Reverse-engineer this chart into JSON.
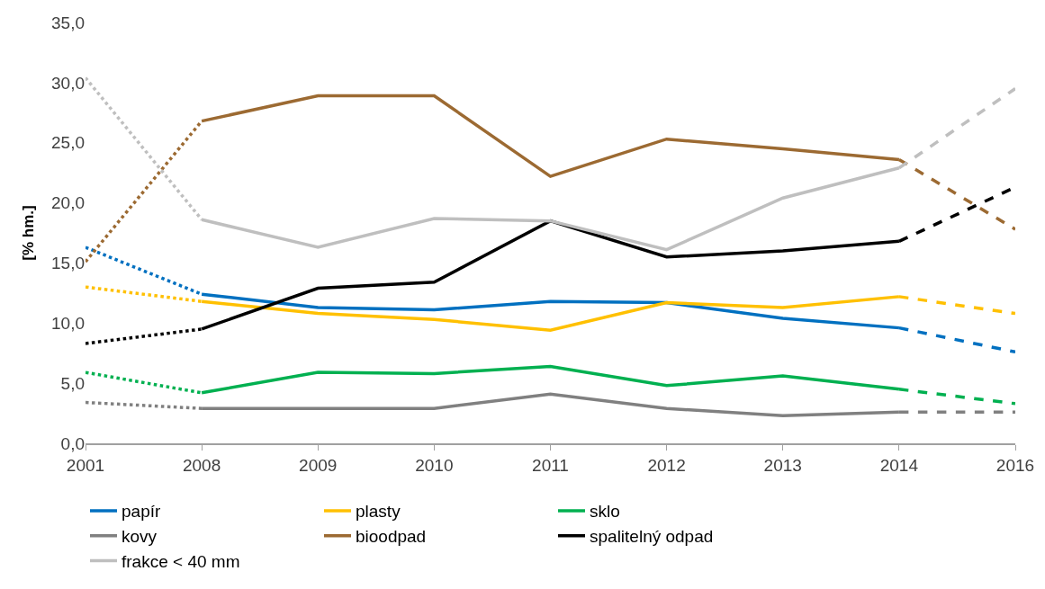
{
  "chart_data": {
    "type": "line",
    "ylabel": "[% hm.]",
    "categories": [
      "2001",
      "2008",
      "2009",
      "2010",
      "2011",
      "2012",
      "2013",
      "2014",
      "2016"
    ],
    "ylim": [
      0,
      35
    ],
    "yticks": [
      {
        "value": 0,
        "label": "0,0"
      },
      {
        "value": 5,
        "label": "5,0"
      },
      {
        "value": 10,
        "label": "10,0"
      },
      {
        "value": 15,
        "label": "15,0"
      },
      {
        "value": 20,
        "label": "20,0"
      },
      {
        "value": 25,
        "label": "25,0"
      },
      {
        "value": 30,
        "label": "30,0"
      },
      {
        "value": 35,
        "label": "35,0"
      }
    ],
    "legend": "bottom",
    "marker": "none",
    "line_style": "solid",
    "series": [
      {
        "name": "papír",
        "color": "#0070c0",
        "values": [
          null,
          12.4,
          11.3,
          11.1,
          11.8,
          11.7,
          10.4,
          9.6,
          null
        ]
      },
      {
        "name": "plasty",
        "color": "#ffc000",
        "values": [
          null,
          11.8,
          10.8,
          10.3,
          9.4,
          11.7,
          11.3,
          12.2,
          null
        ]
      },
      {
        "name": "sklo",
        "color": "#00b050",
        "values": [
          null,
          4.2,
          5.9,
          5.8,
          6.4,
          4.8,
          5.6,
          4.5,
          null
        ]
      },
      {
        "name": "kovy",
        "color": "#808080",
        "values": [
          null,
          2.9,
          2.9,
          2.9,
          4.1,
          2.9,
          2.3,
          2.6,
          null
        ]
      },
      {
        "name": "bioodpad",
        "color": "#9c6a32",
        "values": [
          null,
          26.8,
          28.9,
          28.9,
          22.2,
          25.3,
          24.5,
          23.6,
          null
        ]
      },
      {
        "name": "spalitelný odpad",
        "color": "#000000",
        "values": [
          null,
          9.5,
          12.9,
          13.4,
          18.5,
          15.5,
          16.0,
          16.8,
          null
        ]
      },
      {
        "name": "frakce < 40 mm",
        "color": "#bfbfbf",
        "values": [
          null,
          18.6,
          16.3,
          18.7,
          18.5,
          16.1,
          20.4,
          22.9,
          null
        ]
      },
      {
        "color": "#0070c0",
        "line_style": "dotted",
        "values": [
          16.3,
          12.4,
          null,
          null,
          null,
          null,
          null,
          null,
          null
        ]
      },
      {
        "color": "#ffc000",
        "line_style": "dotted",
        "values": [
          13.0,
          11.8,
          null,
          null,
          null,
          null,
          null,
          null,
          null
        ]
      },
      {
        "color": "#00b050",
        "line_style": "dotted",
        "values": [
          5.9,
          4.2,
          null,
          null,
          null,
          null,
          null,
          null,
          null
        ]
      },
      {
        "color": "#808080",
        "line_style": "dotted",
        "values": [
          3.4,
          2.9,
          null,
          null,
          null,
          null,
          null,
          null,
          null
        ]
      },
      {
        "color": "#9c6a32",
        "line_style": "dotted",
        "values": [
          15.1,
          26.8,
          null,
          null,
          null,
          null,
          null,
          null,
          null
        ]
      },
      {
        "color": "#000000",
        "line_style": "dotted",
        "values": [
          8.3,
          9.5,
          null,
          null,
          null,
          null,
          null,
          null,
          null
        ]
      },
      {
        "color": "#bfbfbf",
        "line_style": "dotted",
        "values": [
          30.4,
          18.6,
          null,
          null,
          null,
          null,
          null,
          null,
          null
        ]
      },
      {
        "color": "#0070c0",
        "line_style": "dashed",
        "values": [
          null,
          null,
          null,
          null,
          null,
          null,
          null,
          9.6,
          7.6
        ]
      },
      {
        "color": "#ffc000",
        "line_style": "dashed",
        "values": [
          null,
          null,
          null,
          null,
          null,
          null,
          null,
          12.2,
          10.8
        ]
      },
      {
        "color": "#00b050",
        "line_style": "dashed",
        "values": [
          null,
          null,
          null,
          null,
          null,
          null,
          null,
          4.5,
          3.3
        ]
      },
      {
        "color": "#808080",
        "line_style": "dashed",
        "values": [
          null,
          null,
          null,
          null,
          null,
          null,
          null,
          2.6,
          2.6
        ]
      },
      {
        "color": "#9c6a32",
        "line_style": "dashed",
        "values": [
          null,
          null,
          null,
          null,
          null,
          null,
          null,
          23.6,
          17.8
        ]
      },
      {
        "color": "#000000",
        "line_style": "dashed",
        "values": [
          null,
          null,
          null,
          null,
          null,
          null,
          null,
          16.8,
          21.3
        ]
      },
      {
        "color": "#bfbfbf",
        "line_style": "dashed",
        "values": [
          null,
          null,
          null,
          null,
          null,
          null,
          null,
          22.9,
          29.5
        ]
      }
    ]
  }
}
